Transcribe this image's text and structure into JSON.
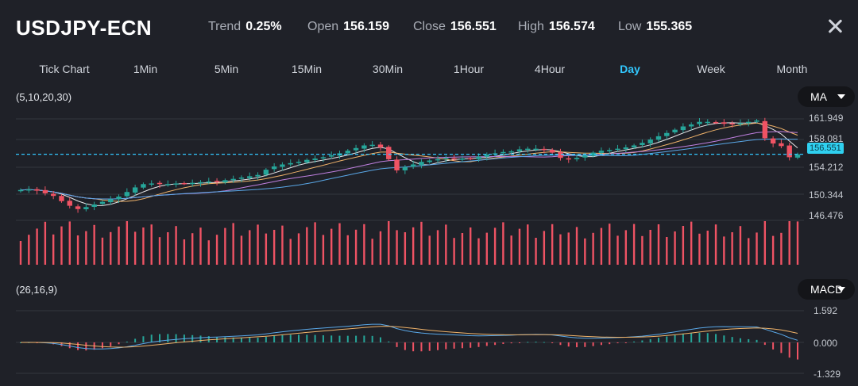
{
  "header": {
    "symbol": "USDJPY-ECN",
    "stats": [
      {
        "label": "Trend",
        "value": "0.25%"
      },
      {
        "label": "Open",
        "value": "156.159"
      },
      {
        "label": "Close",
        "value": "156.551"
      },
      {
        "label": "High",
        "value": "156.574"
      },
      {
        "label": "Low",
        "value": "155.365"
      }
    ]
  },
  "tabs": [
    "Tick Chart",
    "1Min",
    "5Min",
    "15Min",
    "30Min",
    "1Hour",
    "4Hour",
    "Day",
    "Week",
    "Month"
  ],
  "active_tab": "Day",
  "main_panel": {
    "params": "(5,10,20,30)",
    "indicator": "MA",
    "price_ticks": [
      "161.949",
      "158.081",
      "154.212",
      "150.344",
      "146.476"
    ],
    "current_price": "156.551"
  },
  "macd_panel": {
    "params": "(26,16,9)",
    "indicator": "MACD",
    "ticks": [
      "1.592",
      "0.000",
      "-1.329"
    ]
  },
  "colors": {
    "up": "#26a69a",
    "down": "#ef5364",
    "accent": "#32c8ff",
    "background": "#1f2128"
  },
  "chart_data": {
    "type": "candlestick",
    "close_series": [
      151.1,
      151.2,
      151.0,
      150.6,
      150.2,
      149.4,
      148.7,
      148.2,
      148.5,
      148.9,
      149.3,
      149.7,
      150.1,
      150.8,
      151.5,
      152.0,
      152.1,
      152.0,
      152.0,
      152.1,
      152.1,
      152.2,
      152.3,
      152.4,
      152.3,
      152.6,
      152.8,
      153.0,
      153.2,
      153.4,
      154.2,
      154.7,
      155.0,
      155.2,
      155.4,
      155.7,
      155.9,
      156.1,
      156.4,
      156.7,
      157.1,
      157.5,
      157.9,
      158.0,
      157.6,
      155.8,
      154.1,
      154.6,
      155.0,
      155.4,
      155.6,
      155.8,
      156.0,
      155.9,
      155.9,
      155.9,
      156.2,
      156.5,
      156.7,
      156.9,
      157.0,
      157.3,
      157.4,
      157.4,
      157.2,
      156.8,
      156.0,
      155.8,
      156.0,
      156.4,
      156.8,
      157.1,
      157.2,
      157.4,
      157.6,
      157.9,
      158.3,
      158.8,
      159.3,
      159.8,
      160.3,
      160.8,
      161.1,
      161.5,
      161.5,
      161.4,
      161.2,
      161.2,
      161.3,
      161.5,
      161.7,
      159.0,
      158.2,
      157.8,
      156.1,
      156.55
    ]
  }
}
